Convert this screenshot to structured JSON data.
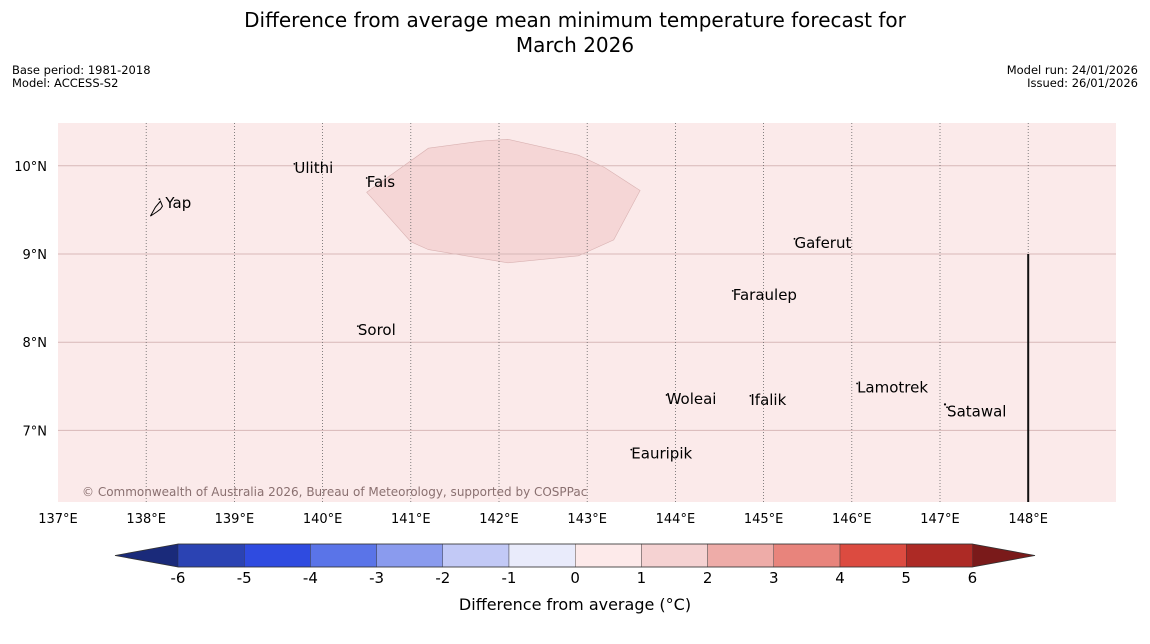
{
  "title_line1": "Difference from average mean minimum temperature forecast for",
  "title_line2": "March 2026",
  "meta_left": [
    "Base period: 1981-2018",
    "Model: ACCESS-S2"
  ],
  "meta_right": [
    "Model run: 24/01/2026",
    "Issued: 26/01/2026"
  ],
  "copyright": "© Commonwealth of Australia 2026, Bureau of Meteorology, supported by COSPPac",
  "map": {
    "lon_ticks": [
      {
        "value": 137,
        "label": "137°E"
      },
      {
        "value": 138,
        "label": "138°E"
      },
      {
        "value": 139,
        "label": "139°E"
      },
      {
        "value": 140,
        "label": "140°E"
      },
      {
        "value": 141,
        "label": "141°E"
      },
      {
        "value": 142,
        "label": "142°E"
      },
      {
        "value": 143,
        "label": "143°E"
      },
      {
        "value": 144,
        "label": "144°E"
      },
      {
        "value": 145,
        "label": "145°E"
      },
      {
        "value": 146,
        "label": "146°E"
      },
      {
        "value": 147,
        "label": "147°E"
      },
      {
        "value": 148,
        "label": "148°E"
      }
    ],
    "lat_ticks": [
      {
        "value": 10,
        "label": "10°N"
      },
      {
        "value": 9,
        "label": "9°N"
      },
      {
        "value": 8,
        "label": "8°N"
      },
      {
        "value": 7,
        "label": "7°N"
      }
    ],
    "lon_range": [
      137,
      149
    ],
    "lat_range": [
      6.2,
      10.5
    ],
    "background_class": "0 to 1",
    "background_color": "#fbeaea",
    "anomaly_region": {
      "class": "1 to 2",
      "color": "#f5d6d6",
      "outline": [
        [
          140.5,
          9.7
        ],
        [
          141.2,
          10.2
        ],
        [
          141.8,
          10.28
        ],
        [
          142.1,
          10.3
        ],
        [
          142.9,
          10.12
        ],
        [
          143.2,
          9.98
        ],
        [
          143.6,
          9.72
        ],
        [
          143.3,
          9.16
        ],
        [
          142.9,
          8.98
        ],
        [
          142.1,
          8.9
        ],
        [
          141.2,
          9.05
        ],
        [
          141.0,
          9.14
        ]
      ]
    },
    "places": [
      {
        "name": "Yap",
        "lon": 138.15,
        "lat": 9.52
      },
      {
        "name": "Ulithi",
        "lon": 139.68,
        "lat": 9.92
      },
      {
        "name": "Fais",
        "lon": 140.5,
        "lat": 9.76
      },
      {
        "name": "Gaferut",
        "lon": 145.35,
        "lat": 9.07
      },
      {
        "name": "Faraulep",
        "lon": 144.65,
        "lat": 8.48
      },
      {
        "name": "Sorol",
        "lon": 140.4,
        "lat": 8.08
      },
      {
        "name": "Lamotrek",
        "lon": 146.06,
        "lat": 7.43
      },
      {
        "name": "Satawal",
        "lon": 147.08,
        "lat": 7.16
      },
      {
        "name": "Woleai",
        "lon": 143.9,
        "lat": 7.3
      },
      {
        "name": "Ifalik",
        "lon": 144.85,
        "lat": 7.29
      },
      {
        "name": "Eauripik",
        "lon": 143.5,
        "lat": 6.68
      }
    ],
    "extra_dots": [
      {
        "lon": 147.0,
        "lat": 7.34
      }
    ],
    "boundary_line": {
      "lon": 148.0,
      "lat_from": 6.2,
      "lat_to": 9.0
    }
  },
  "colorbar": {
    "label": "Difference from average (°C)",
    "tick_labels": [
      "-6",
      "-5",
      "-4",
      "-3",
      "-2",
      "-1",
      "0",
      "1",
      "2",
      "3",
      "4",
      "5",
      "6"
    ],
    "tick_values": [
      -6,
      -5,
      -4,
      -3,
      -2,
      -1,
      0,
      1,
      2,
      3,
      4,
      5,
      6
    ],
    "bin_colors": [
      "#2b43b3",
      "#2f4be0",
      "#5a74e8",
      "#8a9bee",
      "#c2c9f6",
      "#e9ebfb",
      "#fdeaea",
      "#f5d2d2",
      "#eeaca8",
      "#e8847c",
      "#dc4b40",
      "#ad2a25"
    ],
    "under_color": "#1a2a7a",
    "over_color": "#7a1a1a"
  }
}
